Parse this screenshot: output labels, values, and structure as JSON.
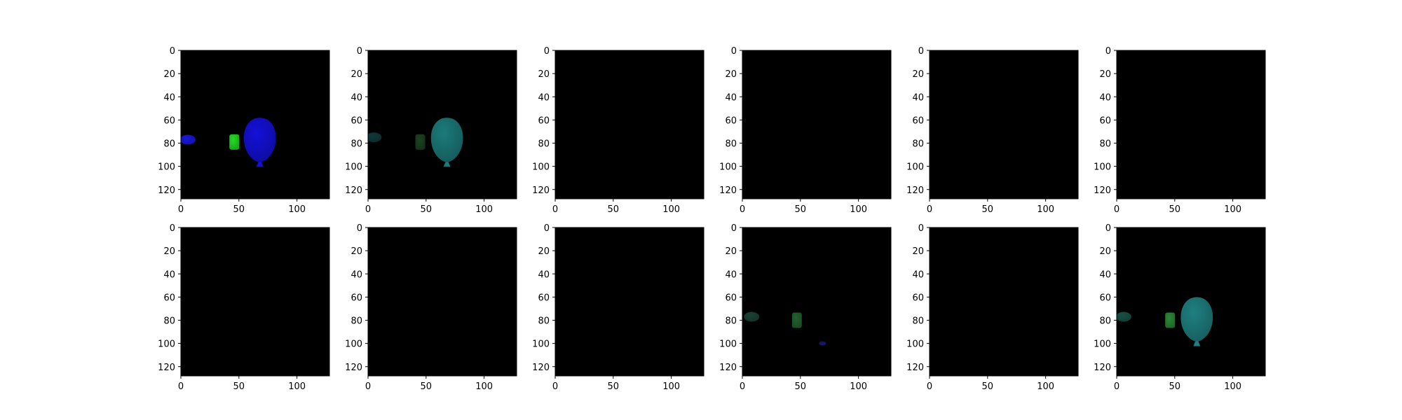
{
  "chart_data": {
    "type": "image-grid",
    "rows": 2,
    "cols": 6,
    "image_size": [
      128,
      128
    ],
    "x_ticks": [
      "0",
      "50",
      "100"
    ],
    "y_ticks": [
      "0",
      "20",
      "40",
      "60",
      "80",
      "100",
      "120"
    ],
    "x_tick_values": [
      0,
      50,
      100
    ],
    "y_tick_values": [
      0,
      20,
      40,
      60,
      80,
      100,
      120
    ],
    "background_color": "#000000",
    "panels": [
      {
        "index": 0,
        "content": [
          {
            "type": "balloon",
            "cx": 68,
            "cy": 78,
            "color": "#1410d8",
            "opacity": 1.0
          },
          {
            "type": "box",
            "cx": 46,
            "cy": 79,
            "color": "#22dd22",
            "opacity": 1.0
          },
          {
            "type": "small-balloon",
            "cx": 6,
            "cy": 77,
            "color": "#1818e0",
            "opacity": 1.0
          }
        ]
      },
      {
        "index": 1,
        "content": [
          {
            "type": "balloon",
            "cx": 68,
            "cy": 78,
            "color": "#1c7a7a",
            "opacity": 1.0
          },
          {
            "type": "box",
            "cx": 45,
            "cy": 79,
            "color": "#1f4a22",
            "opacity": 0.9
          },
          {
            "type": "small-balloon",
            "cx": 5,
            "cy": 75,
            "color": "#144848",
            "opacity": 0.8
          }
        ]
      },
      {
        "index": 2,
        "content": []
      },
      {
        "index": 3,
        "content": []
      },
      {
        "index": 4,
        "content": []
      },
      {
        "index": 5,
        "content": []
      },
      {
        "index": 6,
        "content": []
      },
      {
        "index": 7,
        "content": []
      },
      {
        "index": 8,
        "content": []
      },
      {
        "index": 9,
        "content": [
          {
            "type": "small-balloon",
            "cx": 8,
            "cy": 77,
            "color": "#1e4a3a",
            "opacity": 0.9
          },
          {
            "type": "box",
            "cx": 47,
            "cy": 80,
            "color": "#23622f",
            "opacity": 1.0
          },
          {
            "type": "dot",
            "cx": 69,
            "cy": 100,
            "color": "#1a1a6a",
            "opacity": 0.9
          }
        ]
      },
      {
        "index": 10,
        "content": []
      },
      {
        "index": 11,
        "content": [
          {
            "type": "balloon",
            "cx": 69,
            "cy": 80,
            "color": "#1f7f80",
            "opacity": 1.0
          },
          {
            "type": "box",
            "cx": 46,
            "cy": 80,
            "color": "#2a8a36",
            "opacity": 1.0
          },
          {
            "type": "small-balloon",
            "cx": 6,
            "cy": 77,
            "color": "#1c5a4e",
            "opacity": 0.9
          }
        ]
      }
    ]
  }
}
